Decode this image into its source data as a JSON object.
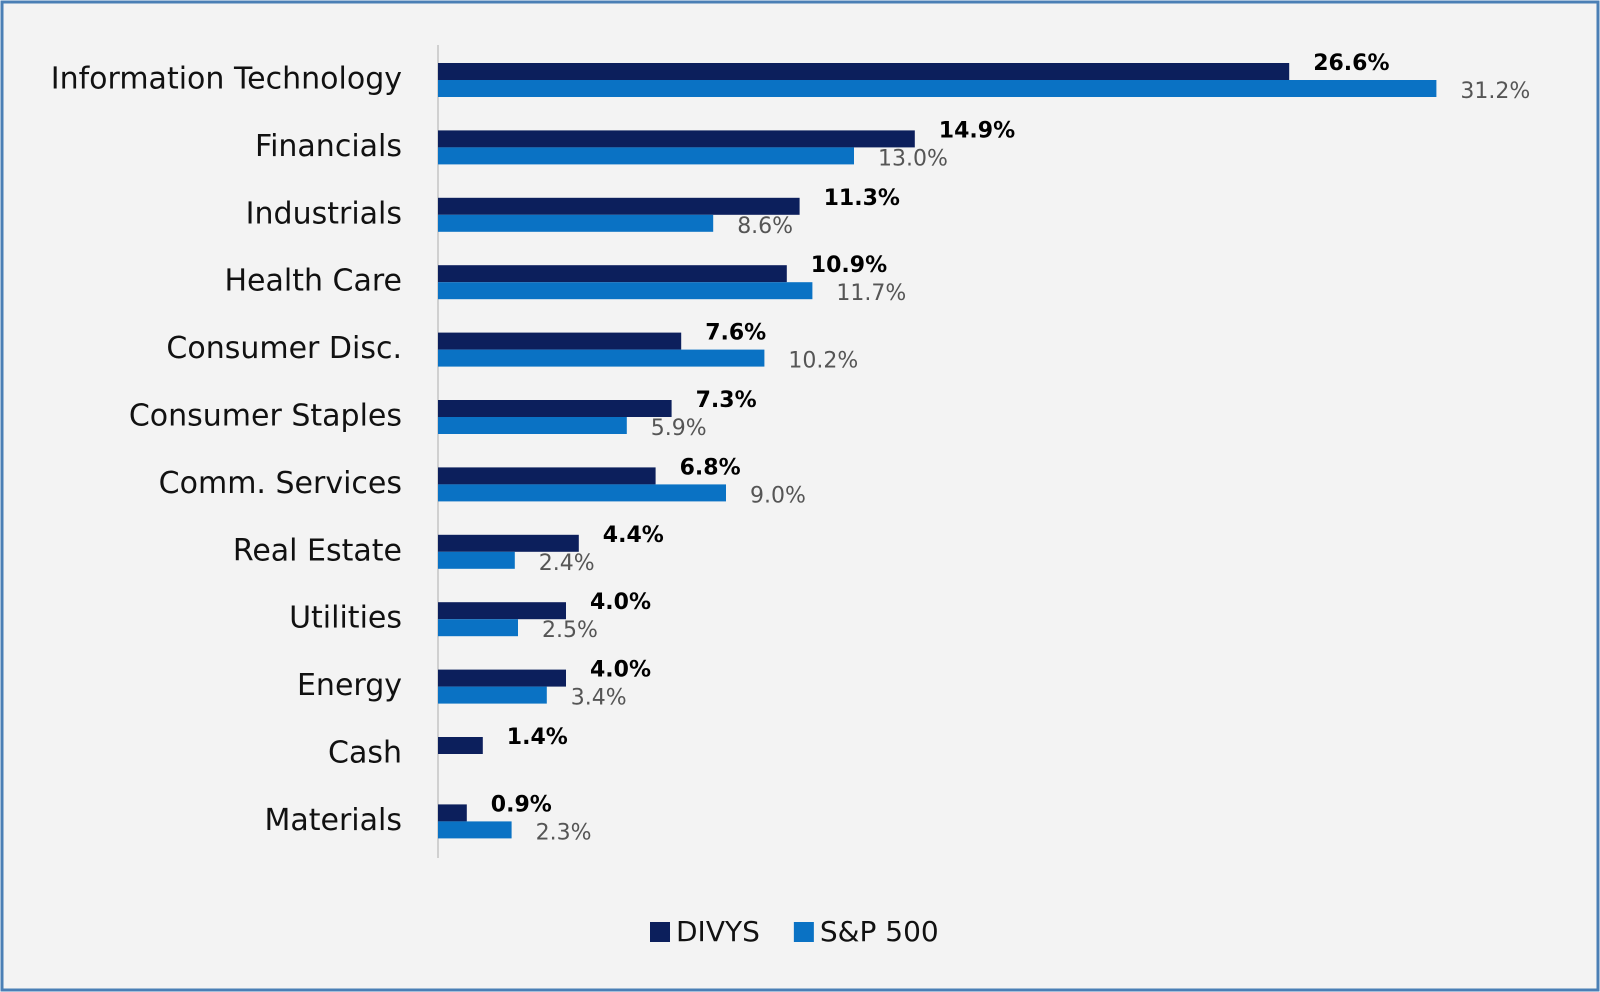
{
  "chart_data": {
    "type": "hbar",
    "categories": [
      "Information Technology",
      "Financials",
      "Industrials",
      "Health Care",
      "Consumer Disc.",
      "Consumer Staples",
      "Comm. Services",
      "Real Estate",
      "Utilities",
      "Energy",
      "Cash",
      "Materials"
    ],
    "series": [
      {
        "name": "DIVYS",
        "color": "#0c1f5c",
        "values": [
          26.6,
          14.9,
          11.3,
          10.9,
          7.6,
          7.3,
          6.8,
          4.4,
          4.0,
          4.0,
          1.4,
          0.9
        ],
        "value_labels": [
          "26.6%",
          "14.9%",
          "11.3%",
          "10.9%",
          "7.6%",
          "7.3%",
          "6.8%",
          "4.4%",
          "4.0%",
          "4.0%",
          "1.4%",
          "0.9%"
        ]
      },
      {
        "name": "S&P 500",
        "color": "#0a72c4",
        "values": [
          31.2,
          13.0,
          8.6,
          11.7,
          10.2,
          5.9,
          9.0,
          2.4,
          2.5,
          3.4,
          null,
          2.3
        ],
        "value_labels": [
          "31.2%",
          "13.0%",
          "8.6%",
          "11.7%",
          "10.2%",
          "5.9%",
          "9.0%",
          "2.4%",
          "2.5%",
          "3.4%",
          null,
          "2.3%"
        ]
      }
    ]
  }
}
